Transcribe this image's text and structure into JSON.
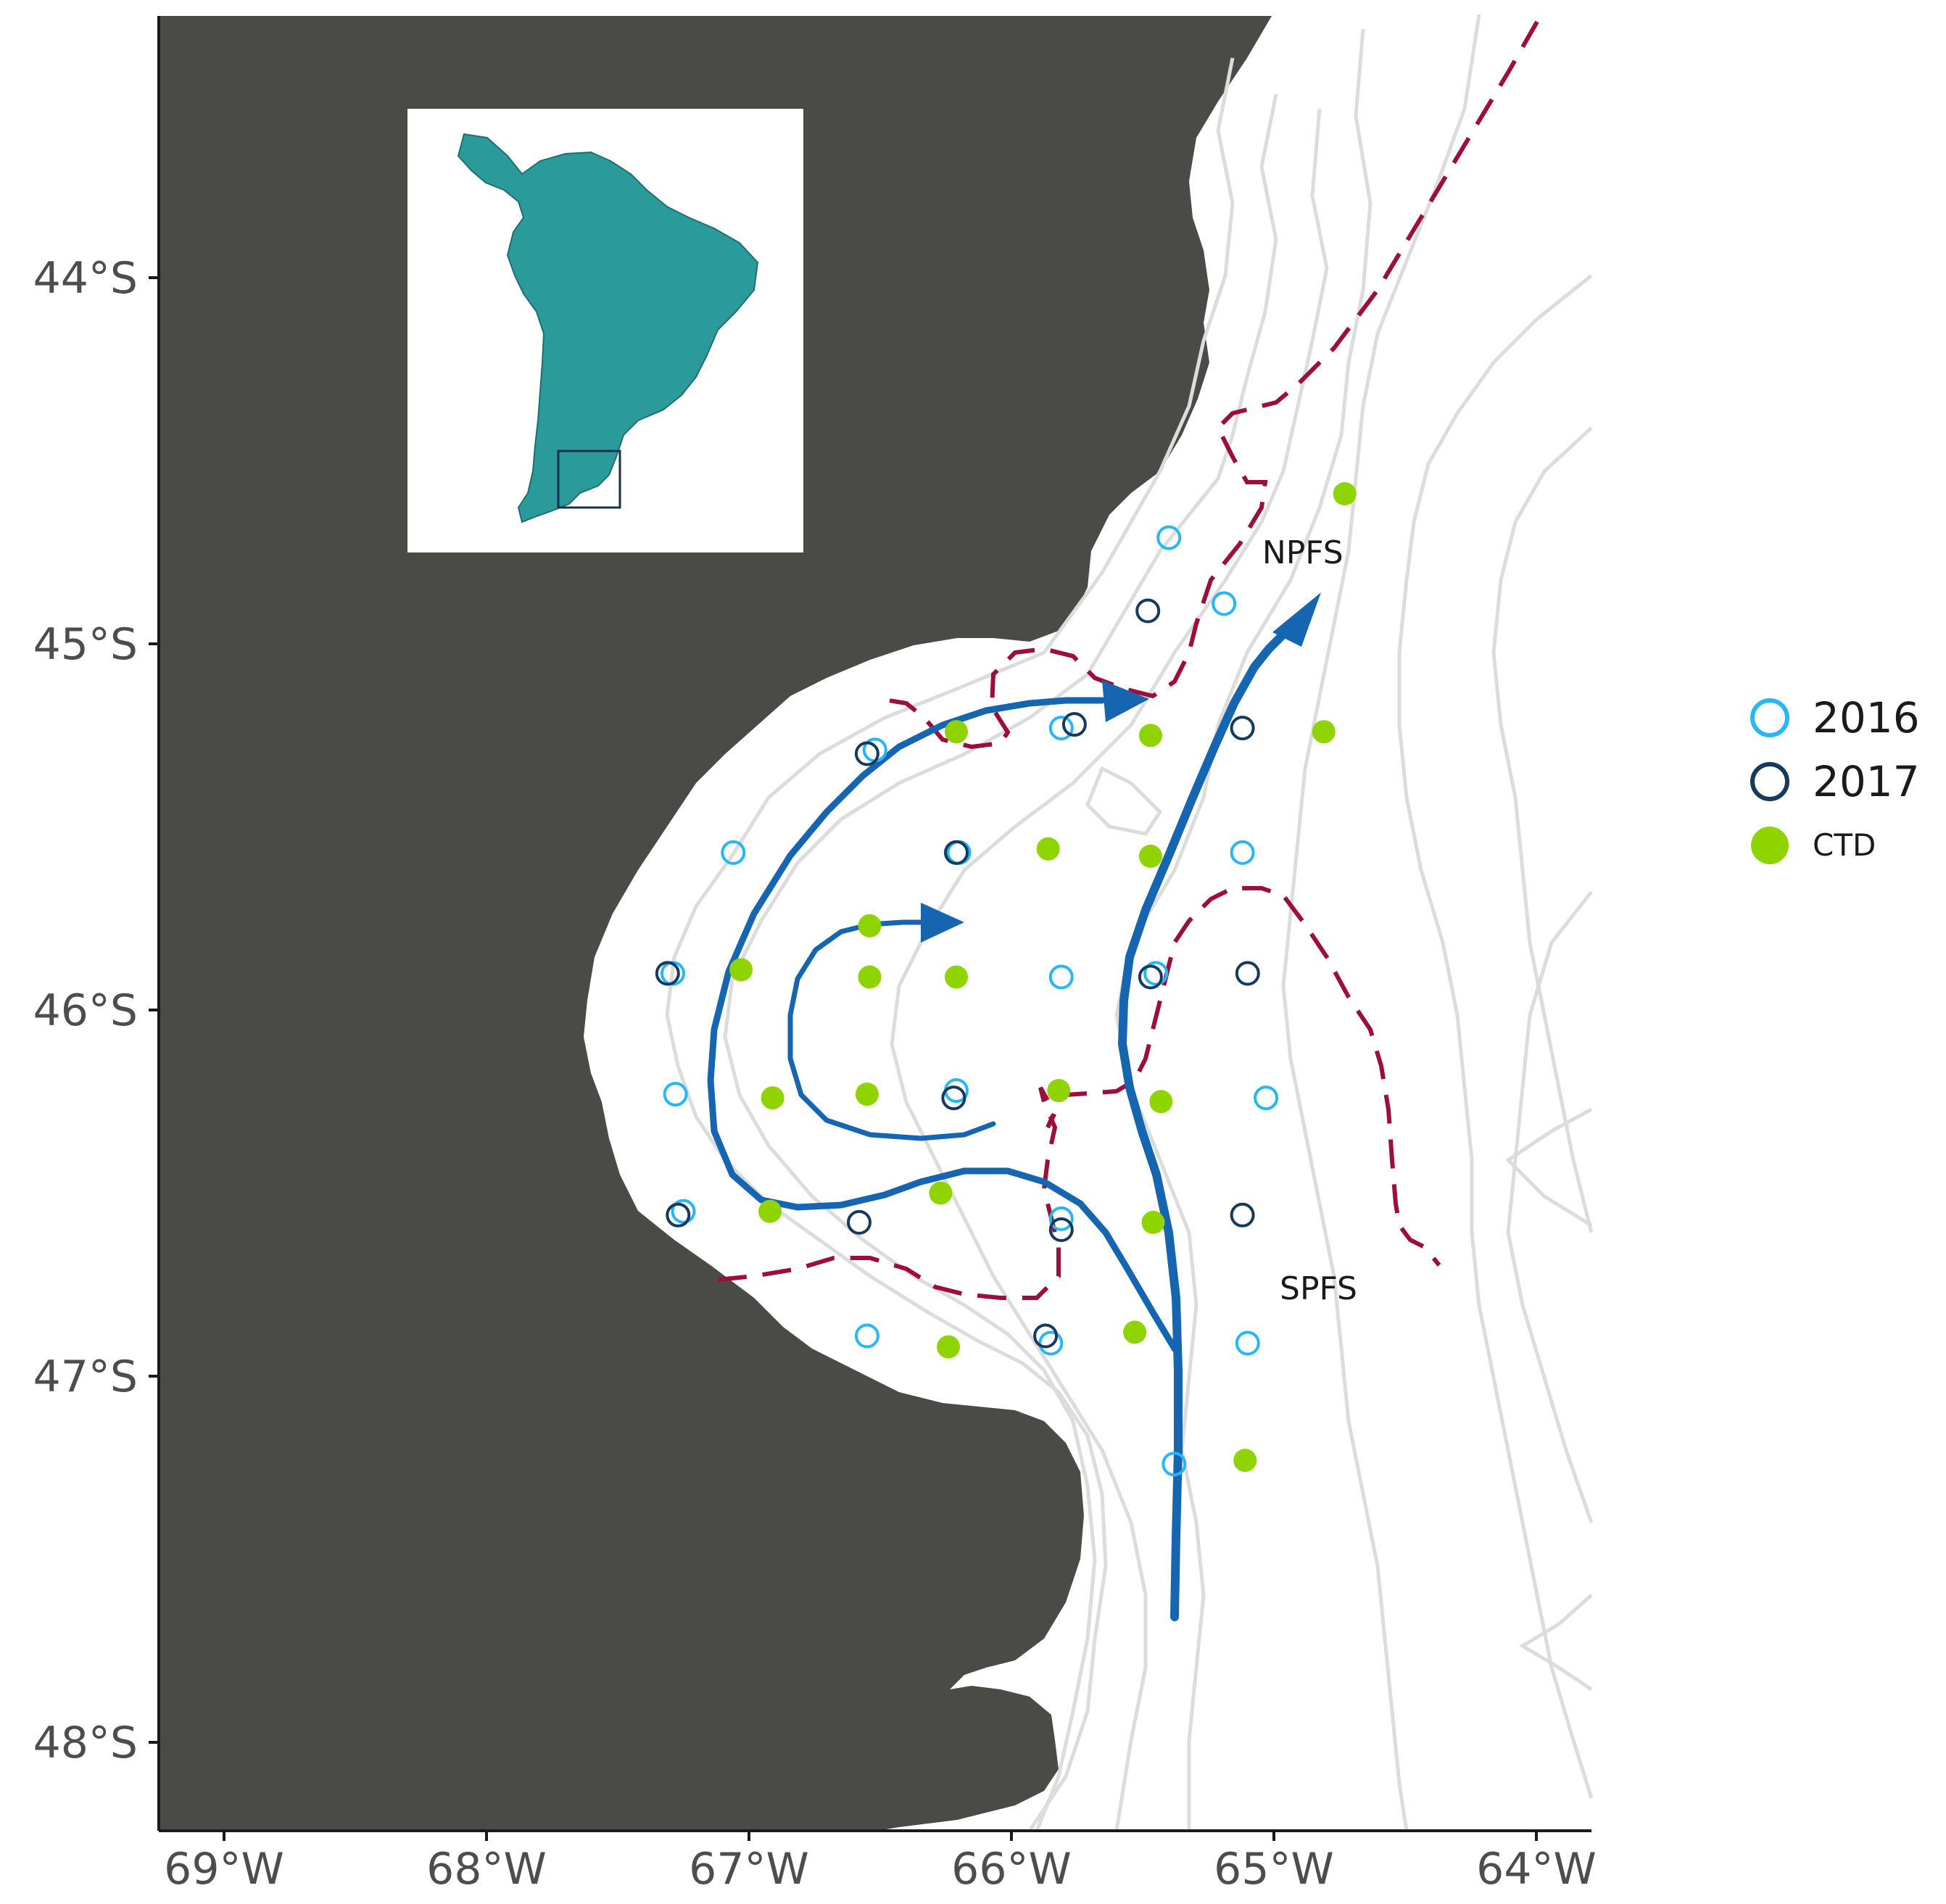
{
  "map": {
    "y_axis": {
      "ticks": [
        {
          "value": -44,
          "label": "44°S"
        },
        {
          "value": -45,
          "label": "45°S"
        },
        {
          "value": -46,
          "label": "46°S"
        },
        {
          "value": -47,
          "label": "47°S"
        },
        {
          "value": -48,
          "label": "48°S"
        }
      ]
    },
    "x_axis": {
      "ticks": [
        {
          "value": -69,
          "label": "69°W"
        },
        {
          "value": -68,
          "label": "68°W"
        },
        {
          "value": -67,
          "label": "67°W"
        },
        {
          "value": -66,
          "label": "66°W"
        },
        {
          "value": -65,
          "label": "65°W"
        },
        {
          "value": -64,
          "label": "64°W"
        }
      ]
    },
    "regions": [
      {
        "name": "NPFS",
        "lon": -64.89,
        "lat": -44.78
      },
      {
        "name": "SPFS",
        "lon": -64.83,
        "lat": -46.79
      }
    ],
    "legend": {
      "position": "right",
      "entries": [
        {
          "label": "2016",
          "symbol": "open-circle",
          "color": "#29b6f6"
        },
        {
          "label": "2017",
          "symbol": "open-circle",
          "color": "#163a5f"
        },
        {
          "label": "CTD",
          "symbol": "filled-circle",
          "color": "#8fd400"
        }
      ]
    },
    "colors": {
      "land": "#4a4a46",
      "inset_land": "#2a9a9a",
      "current_arrow": "#1565b0",
      "front_dashed": "#9c0e3c",
      "bathymetry": "#dcdcdc"
    },
    "inset": {
      "content": "South America",
      "highlight": "study area box"
    },
    "stations": [
      {
        "series": "2016",
        "lon": -65.4,
        "lat": -44.71
      },
      {
        "series": "2016",
        "lon": -65.19,
        "lat": -44.89
      },
      {
        "series": "2016",
        "lon": -65.81,
        "lat": -45.23
      },
      {
        "series": "2016",
        "lon": -66.52,
        "lat": -45.29
      },
      {
        "series": "2016",
        "lon": -67.06,
        "lat": -45.57
      },
      {
        "series": "2016",
        "lon": -66.2,
        "lat": -45.57
      },
      {
        "series": "2016",
        "lon": -65.12,
        "lat": -45.57
      },
      {
        "series": "2016",
        "lon": -67.29,
        "lat": -45.9
      },
      {
        "series": "2016",
        "lon": -65.81,
        "lat": -45.91
      },
      {
        "series": "2016",
        "lon": -65.45,
        "lat": -45.9
      },
      {
        "series": "2016",
        "lon": -67.28,
        "lat": -46.23
      },
      {
        "series": "2016",
        "lon": -66.21,
        "lat": -46.22
      },
      {
        "series": "2016",
        "lon": -65.03,
        "lat": -46.24
      },
      {
        "series": "2016",
        "lon": -67.25,
        "lat": -46.55
      },
      {
        "series": "2016",
        "lon": -65.81,
        "lat": -46.57
      },
      {
        "series": "2016",
        "lon": -66.55,
        "lat": -46.89
      },
      {
        "series": "2016",
        "lon": -65.85,
        "lat": -46.91
      },
      {
        "series": "2016",
        "lon": -65.1,
        "lat": -46.91
      },
      {
        "series": "2016",
        "lon": -65.38,
        "lat": -47.24
      },
      {
        "series": "2017",
        "lon": -65.48,
        "lat": -44.91
      },
      {
        "series": "2017",
        "lon": -65.76,
        "lat": -45.22
      },
      {
        "series": "2017",
        "lon": -65.12,
        "lat": -45.23
      },
      {
        "series": "2017",
        "lon": -66.55,
        "lat": -45.3
      },
      {
        "series": "2017",
        "lon": -66.21,
        "lat": -45.57
      },
      {
        "series": "2017",
        "lon": -67.31,
        "lat": -45.9
      },
      {
        "series": "2017",
        "lon": -65.47,
        "lat": -45.91
      },
      {
        "series": "2017",
        "lon": -65.1,
        "lat": -45.9
      },
      {
        "series": "2017",
        "lon": -66.22,
        "lat": -46.24
      },
      {
        "series": "2017",
        "lon": -67.27,
        "lat": -46.56
      },
      {
        "series": "2017",
        "lon": -66.58,
        "lat": -46.58
      },
      {
        "series": "2017",
        "lon": -65.81,
        "lat": -46.6
      },
      {
        "series": "2017",
        "lon": -65.12,
        "lat": -46.56
      },
      {
        "series": "2017",
        "lon": -65.87,
        "lat": -46.89
      },
      {
        "series": "CTD",
        "lon": -64.73,
        "lat": -44.59
      },
      {
        "series": "CTD",
        "lon": -66.21,
        "lat": -45.24
      },
      {
        "series": "CTD",
        "lon": -65.47,
        "lat": -45.25
      },
      {
        "series": "CTD",
        "lon": -64.81,
        "lat": -45.24
      },
      {
        "series": "CTD",
        "lon": -65.86,
        "lat": -45.56
      },
      {
        "series": "CTD",
        "lon": -65.47,
        "lat": -45.58
      },
      {
        "series": "CTD",
        "lon": -66.54,
        "lat": -45.77
      },
      {
        "series": "CTD",
        "lon": -67.03,
        "lat": -45.89
      },
      {
        "series": "CTD",
        "lon": -66.54,
        "lat": -45.91
      },
      {
        "series": "CTD",
        "lon": -66.21,
        "lat": -45.91
      },
      {
        "series": "CTD",
        "lon": -66.91,
        "lat": -46.24
      },
      {
        "series": "CTD",
        "lon": -66.55,
        "lat": -46.23
      },
      {
        "series": "CTD",
        "lon": -65.82,
        "lat": -46.22
      },
      {
        "series": "CTD",
        "lon": -65.43,
        "lat": -46.25
      },
      {
        "series": "CTD",
        "lon": -66.27,
        "lat": -46.5
      },
      {
        "series": "CTD",
        "lon": -66.92,
        "lat": -46.55
      },
      {
        "series": "CTD",
        "lon": -65.46,
        "lat": -46.58
      },
      {
        "series": "CTD",
        "lon": -66.24,
        "lat": -46.92
      },
      {
        "series": "CTD",
        "lon": -65.53,
        "lat": -46.88
      },
      {
        "series": "CTD",
        "lon": -65.11,
        "lat": -47.23
      }
    ]
  }
}
